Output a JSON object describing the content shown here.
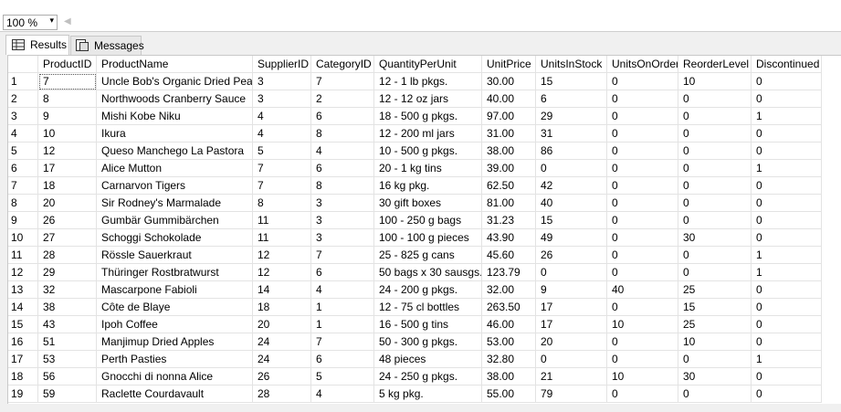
{
  "toolbar": {
    "zoom": "100 %"
  },
  "tabs": [
    "Results",
    "Messages"
  ],
  "table": {
    "columns": [
      "ProductID",
      "ProductName",
      "SupplierID",
      "CategoryID",
      "QuantityPerUnit",
      "UnitPrice",
      "UnitsInStock",
      "UnitsOnOrder",
      "ReorderLevel",
      "Discontinued"
    ],
    "row_numbers": [
      "1",
      "2",
      "3",
      "4",
      "5",
      "6",
      "7",
      "8",
      "9",
      "10",
      "11",
      "12",
      "13",
      "14",
      "15",
      "16",
      "17",
      "18",
      "19"
    ],
    "rows": [
      [
        "7",
        "Uncle Bob's Organic Dried Pears",
        "3",
        "7",
        "12 - 1 lb pkgs.",
        "30.00",
        "15",
        "0",
        "10",
        "0"
      ],
      [
        "8",
        "Northwoods Cranberry Sauce",
        "3",
        "2",
        "12 - 12 oz jars",
        "40.00",
        "6",
        "0",
        "0",
        "0"
      ],
      [
        "9",
        "Mishi Kobe Niku",
        "4",
        "6",
        "18 - 500 g pkgs.",
        "97.00",
        "29",
        "0",
        "0",
        "1"
      ],
      [
        "10",
        "Ikura",
        "4",
        "8",
        "12 - 200 ml jars",
        "31.00",
        "31",
        "0",
        "0",
        "0"
      ],
      [
        "12",
        "Queso Manchego La Pastora",
        "5",
        "4",
        "10 - 500 g pkgs.",
        "38.00",
        "86",
        "0",
        "0",
        "0"
      ],
      [
        "17",
        "Alice Mutton",
        "7",
        "6",
        "20 - 1 kg tins",
        "39.00",
        "0",
        "0",
        "0",
        "1"
      ],
      [
        "18",
        "Carnarvon Tigers",
        "7",
        "8",
        "16 kg pkg.",
        "62.50",
        "42",
        "0",
        "0",
        "0"
      ],
      [
        "20",
        "Sir Rodney's Marmalade",
        "8",
        "3",
        "30 gift boxes",
        "81.00",
        "40",
        "0",
        "0",
        "0"
      ],
      [
        "26",
        "Gumbär Gummibärchen",
        "11",
        "3",
        "100 - 250 g bags",
        "31.23",
        "15",
        "0",
        "0",
        "0"
      ],
      [
        "27",
        "Schoggi Schokolade",
        "11",
        "3",
        "100 - 100 g pieces",
        "43.90",
        "49",
        "0",
        "30",
        "0"
      ],
      [
        "28",
        "Rössle Sauerkraut",
        "12",
        "7",
        "25 - 825 g cans",
        "45.60",
        "26",
        "0",
        "0",
        "1"
      ],
      [
        "29",
        "Thüringer Rostbratwurst",
        "12",
        "6",
        "50 bags x 30 sausgs.",
        "123.79",
        "0",
        "0",
        "0",
        "1"
      ],
      [
        "32",
        "Mascarpone Fabioli",
        "14",
        "4",
        "24 - 200 g pkgs.",
        "32.00",
        "9",
        "40",
        "25",
        "0"
      ],
      [
        "38",
        "Côte de Blaye",
        "18",
        "1",
        "12 - 75 cl bottles",
        "263.50",
        "17",
        "0",
        "15",
        "0"
      ],
      [
        "43",
        "Ipoh Coffee",
        "20",
        "1",
        "16 - 500 g tins",
        "46.00",
        "17",
        "10",
        "25",
        "0"
      ],
      [
        "51",
        "Manjimup Dried Apples",
        "24",
        "7",
        "50 - 300 g pkgs.",
        "53.00",
        "20",
        "0",
        "10",
        "0"
      ],
      [
        "53",
        "Perth Pasties",
        "24",
        "6",
        "48 pieces",
        "32.80",
        "0",
        "0",
        "0",
        "1"
      ],
      [
        "56",
        "Gnocchi di nonna Alice",
        "26",
        "5",
        "24 - 250 g pkgs.",
        "38.00",
        "21",
        "10",
        "30",
        "0"
      ],
      [
        "59",
        "Raclette Courdavault",
        "28",
        "4",
        "5 kg pkg.",
        "55.00",
        "79",
        "0",
        "0",
        "0"
      ]
    ]
  }
}
